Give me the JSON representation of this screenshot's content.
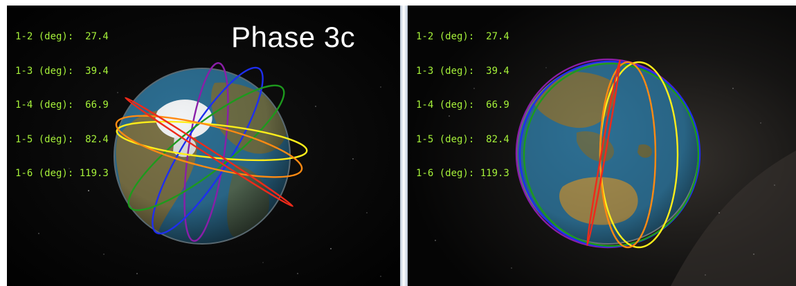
{
  "left_panel": {
    "phase_label": "Phase 3c",
    "readout": [
      "1-2 (deg):  27.4",
      "1-3 (deg):  39.4",
      "1-4 (deg):  66.9",
      "1-5 (deg):  82.4",
      "1-6 (deg): 119.3"
    ],
    "view": "north-pole"
  },
  "right_panel": {
    "readout": [
      "1-2 (deg):  27.4",
      "1-3 (deg):  39.4",
      "1-4 (deg):  66.9",
      "1-5 (deg):  82.4",
      "1-6 (deg): 119.3"
    ],
    "view": "asia-australia"
  },
  "colors": {
    "readout_text": "#a6f23a",
    "orbit_purple": "#8a1ea8",
    "orbit_blue": "#1e2ef0",
    "orbit_green": "#1d9a1d",
    "orbit_yellow": "#ffee1a",
    "orbit_orange": "#ff8a12",
    "orbit_red": "#ee2a1a",
    "ocean": "#2d6f93",
    "land": "#7c7347",
    "ice": "#f2f4f6",
    "space": "#000000"
  }
}
